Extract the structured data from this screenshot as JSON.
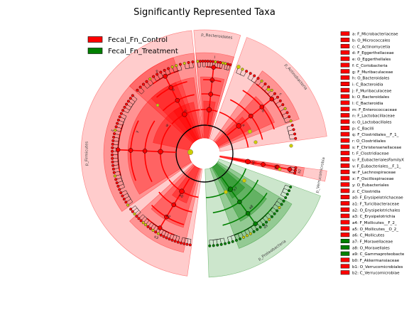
{
  "chart_data": {
    "type": "cladogram",
    "title": "Significantly Represented Taxa",
    "legend": {
      "placement": "top-left",
      "entries": [
        {
          "label": "Fecal_Fn_Control",
          "color": "#ff0000"
        },
        {
          "label": "Fecal_Fn_Treatment",
          "color": "#008000"
        }
      ]
    },
    "phyla": [
      {
        "label": "p_Bacteroidetes",
        "group": "Fecal_Fn_Control",
        "color": "#ff0000"
      },
      {
        "label": "p_Actinobacteria",
        "group": "Fecal_Fn_Control",
        "color": "#ff0000"
      },
      {
        "label": "p_Verrucomicrobia",
        "group": "Fecal_Fn_Control",
        "color": "#ff0000"
      },
      {
        "label": "p_Proteobacteria",
        "group": "Fecal_Fn_Treatment",
        "color": "#008000"
      },
      {
        "label": "p_Firmicutes",
        "group": "Fecal_Fn_Control",
        "color": "#ff0000"
      }
    ],
    "taxa": [
      {
        "key": "a",
        "name": "F_Microbacteriaceae",
        "group": "Fecal_Fn_Control"
      },
      {
        "key": "b",
        "name": "O_Micrococcales",
        "group": "Fecal_Fn_Control"
      },
      {
        "key": "c",
        "name": "C_Actinomycetia",
        "group": "Fecal_Fn_Control"
      },
      {
        "key": "d",
        "name": "F_Eggerthellaceae",
        "group": "Fecal_Fn_Control"
      },
      {
        "key": "e",
        "name": "O_Eggerthellales",
        "group": "Fecal_Fn_Control"
      },
      {
        "key": "f",
        "name": "C_Coriobacteria",
        "group": "Fecal_Fn_Control"
      },
      {
        "key": "g",
        "name": "F_Muribaculaceae",
        "group": "Fecal_Fn_Control"
      },
      {
        "key": "h",
        "name": "O_Bacteroidales",
        "group": "Fecal_Fn_Control"
      },
      {
        "key": "i",
        "name": "C_Bacteroidia",
        "group": "Fecal_Fn_Control"
      },
      {
        "key": "j",
        "name": "F_Muribaculaceae",
        "group": "Fecal_Fn_Control"
      },
      {
        "key": "k",
        "name": "O_Bacteroidales",
        "group": "Fecal_Fn_Control"
      },
      {
        "key": "l",
        "name": "C_Bacteroidia",
        "group": "Fecal_Fn_Control"
      },
      {
        "key": "m",
        "name": "F_Enterococcaceae",
        "group": "Fecal_Fn_Control"
      },
      {
        "key": "n",
        "name": "F_Lactobacillaceae",
        "group": "Fecal_Fn_Control"
      },
      {
        "key": "o",
        "name": "O_Lactobacillales",
        "group": "Fecal_Fn_Control"
      },
      {
        "key": "p",
        "name": "C_Bacilli",
        "group": "Fecal_Fn_Control"
      },
      {
        "key": "q",
        "name": "F_Clostridiales__F_1_",
        "group": "Fecal_Fn_Control"
      },
      {
        "key": "r",
        "name": "O_Clostridiales",
        "group": "Fecal_Fn_Control"
      },
      {
        "key": "s",
        "name": "F_Christensenellaceae",
        "group": "Fecal_Fn_Control"
      },
      {
        "key": "t",
        "name": "F_Clostridiaceae",
        "group": "Fecal_Fn_Control"
      },
      {
        "key": "u",
        "name": "F_EubacterialesFamilyX",
        "group": "Fecal_Fn_Control"
      },
      {
        "key": "v",
        "name": "F_Eubacteriales__F_1_",
        "group": "Fecal_Fn_Control"
      },
      {
        "key": "w",
        "name": "F_Lachnospiraceae",
        "group": "Fecal_Fn_Control"
      },
      {
        "key": "x",
        "name": "F_Oscillospiraceae",
        "group": "Fecal_Fn_Control"
      },
      {
        "key": "y",
        "name": "O_Eubacteriales",
        "group": "Fecal_Fn_Control"
      },
      {
        "key": "z",
        "name": "C_Clostridia",
        "group": "Fecal_Fn_Control"
      },
      {
        "key": "a0",
        "name": "F_Erysipelotrichaceae",
        "group": "Fecal_Fn_Control"
      },
      {
        "key": "a1",
        "name": "F_Turicibacteraceae",
        "group": "Fecal_Fn_Control"
      },
      {
        "key": "a2",
        "name": "O_Erysipelotrichales",
        "group": "Fecal_Fn_Control"
      },
      {
        "key": "a3",
        "name": "C_Erysipelotrichia",
        "group": "Fecal_Fn_Control"
      },
      {
        "key": "a4",
        "name": "F_Mollicutes__F_2_",
        "group": "Fecal_Fn_Control"
      },
      {
        "key": "a5",
        "name": "O_Mollicutes__O_2_",
        "group": "Fecal_Fn_Control"
      },
      {
        "key": "a6",
        "name": "C_Mollicutes",
        "group": "Fecal_Fn_Control"
      },
      {
        "key": "a7",
        "name": "F_Moraxellaceae",
        "group": "Fecal_Fn_Treatment"
      },
      {
        "key": "a8",
        "name": "O_Moraxellales",
        "group": "Fecal_Fn_Treatment"
      },
      {
        "key": "a9",
        "name": "C_Gammaproteobacte",
        "group": "Fecal_Fn_Treatment"
      },
      {
        "key": "b0",
        "name": "F_Akkermansiaceae",
        "group": "Fecal_Fn_Control"
      },
      {
        "key": "b1",
        "name": "O_Verrucomicrobiales",
        "group": "Fecal_Fn_Control"
      },
      {
        "key": "b2",
        "name": "C_Verrucomicrobiae",
        "group": "Fecal_Fn_Control"
      }
    ],
    "colors": {
      "control": "#ff0000",
      "treatment": "#008000",
      "nonsignificant": "#cccc00",
      "branch": "#000000"
    }
  }
}
